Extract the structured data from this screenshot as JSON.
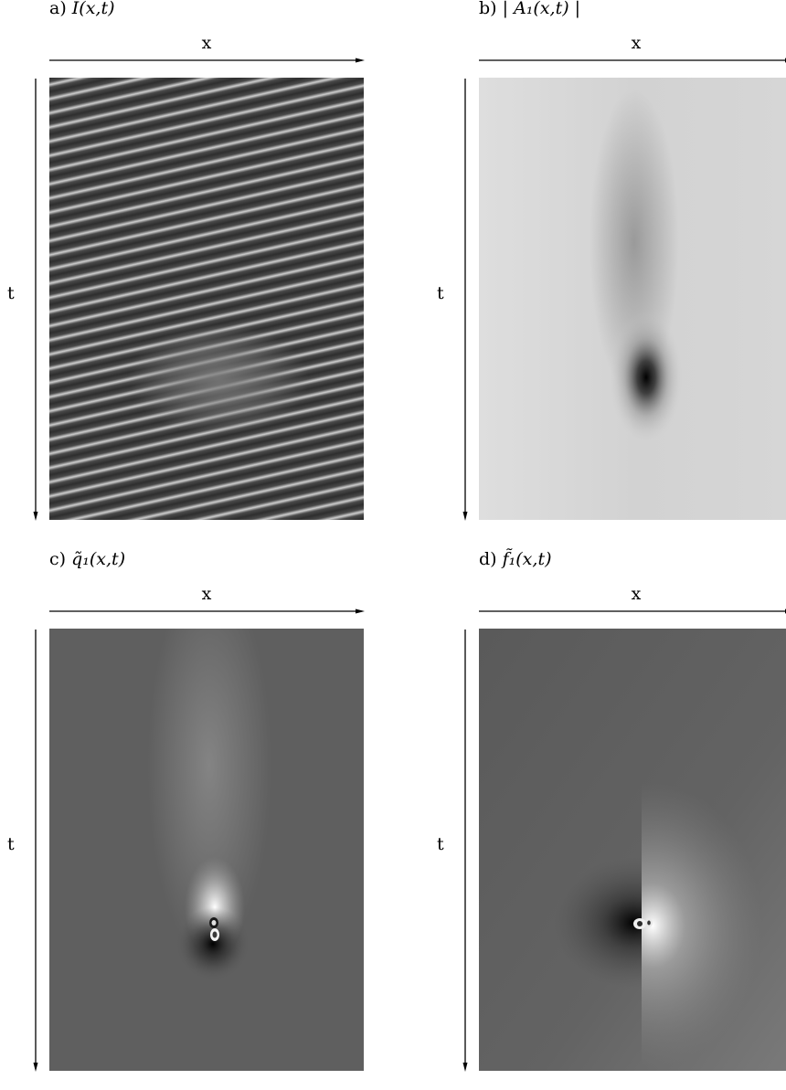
{
  "panels": [
    {
      "letter": "a)",
      "title": "I(x,t)",
      "x_label": "x",
      "t_label": "t",
      "field": "intensity-stripes"
    },
    {
      "letter": "b)",
      "title": "| A₁(x,t) |",
      "x_label": "x",
      "t_label": "t",
      "field": "amplitude"
    },
    {
      "letter": "c)",
      "title": "q̃₁(x,t)",
      "x_label": "x",
      "t_label": "t",
      "field": "phase-q"
    },
    {
      "letter": "d)",
      "title": "f̃₁(x,t)",
      "x_label": "x",
      "t_label": "t",
      "field": "phase-f"
    }
  ]
}
